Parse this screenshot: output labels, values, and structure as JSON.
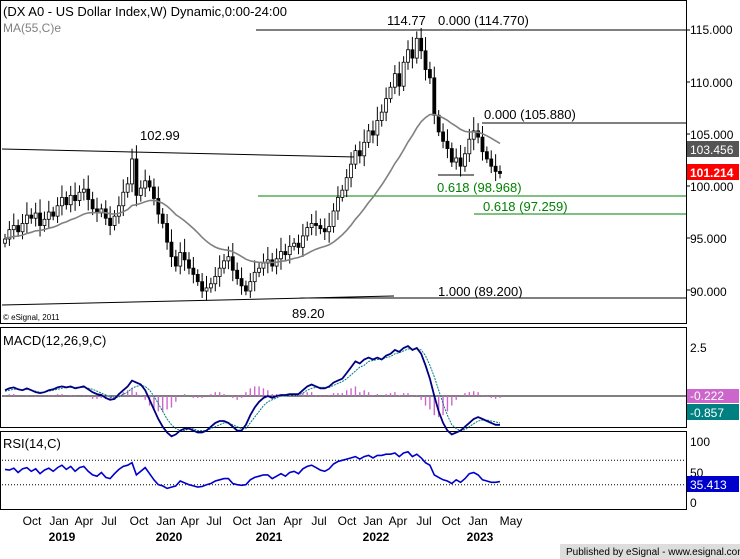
{
  "header": {
    "title": "(DX A0 - US Dollar Index,W) Dynamic,0:00-24:00",
    "ma_label": "MA(55,C)e",
    "copyright": "© eSignal, 2011"
  },
  "footer": {
    "published": "Published by eSignal - www.esignal.com"
  },
  "colors": {
    "ma_line": "#808080",
    "fib_lines": "#008000",
    "macd_line": "#000080",
    "signal_line": "#008080",
    "histogram": "#cc66cc",
    "rsi_line": "#0000cc",
    "price_badge": "#ff0000",
    "ma_badge": "#555555",
    "macd_badge": "#cc66cc",
    "signal_badge": "#008080",
    "rsi_badge": "#0000cc"
  },
  "chart_data": [
    {
      "type": "candlestick",
      "title": "(DX A0 - US Dollar Index,W) Dynamic,0:00-24:00",
      "x_ticks": [
        "Oct",
        "Jan",
        "Apr",
        "Jul",
        "Oct",
        "Jan",
        "Apr",
        "Jul",
        "Oct",
        "Jan",
        "Apr",
        "Jul",
        "Oct",
        "Jan",
        "Apr",
        "Jul",
        "Oct",
        "Jan",
        "May"
      ],
      "year_labels": [
        "2019",
        "2020",
        "2021",
        "2022",
        "2023"
      ],
      "y_ticks": [
        "115.000",
        "110.000",
        "105.000",
        "100.000",
        "95.000",
        "90.000"
      ],
      "ylim": [
        88.2,
        116.8
      ],
      "closes": [
        94.9,
        95.8,
        96.2,
        95.6,
        96.4,
        97.2,
        96.9,
        97.4,
        96.2,
        96.8,
        97.5,
        97.1,
        98.1,
        98.9,
        98.2,
        99.1,
        98.6,
        99.4,
        99.7,
        98.7,
        97.8,
        97.4,
        97.8,
        96.9,
        96.2,
        97.1,
        98.1,
        99.4,
        100.2,
        102.6,
        99.1,
        99.8,
        100.5,
        99.9,
        98.8,
        97.3,
        96.4,
        94.6,
        93.2,
        92.3,
        93.6,
        92.9,
        92.1,
        91.5,
        90.8,
        89.9,
        90.2,
        90.6,
        91.3,
        92.1,
        92.8,
        93.2,
        91.9,
        91.1,
        90.4,
        89.9,
        90.8,
        91.7,
        92.1,
        92.6,
        92.9,
        92.3,
        93.0,
        93.7,
        93.4,
        94.2,
        94.5,
        94.1,
        95.2,
        96.0,
        96.4,
        96.2,
        95.9,
        95.6,
        96.1,
        97.6,
        98.9,
        99.6,
        100.8,
        102.1,
        103.4,
        102.9,
        104.2,
        105.3,
        104.9,
        106.3,
        107.1,
        108.4,
        109.5,
        110.8,
        109.6,
        111.9,
        113.1,
        112.3,
        114.2,
        113.0,
        111.2,
        110.4,
        106.8,
        105.2,
        104.3,
        103.6,
        102.3,
        102.7,
        101.9,
        103.1,
        104.5,
        105.3,
        104.7,
        103.3,
        102.6,
        101.9,
        101.4,
        101.2
      ],
      "ma_label": "MA(55,C)e",
      "ma_value_label": "103.456",
      "last_price_label": "101.214",
      "annotations": [
        {
          "text": "102.99",
          "value": 102.99
        },
        {
          "text": "114.77",
          "value": 114.77
        },
        {
          "text": "0.000 (114.770)",
          "value": 114.77
        },
        {
          "text": "0.000 (105.880)",
          "value": 105.88
        },
        {
          "text": "0.618 (98.968)",
          "value": 98.968
        },
        {
          "text": "0.618 (97.259)",
          "value": 97.259
        },
        {
          "text": "1.000 (89.200)",
          "value": 89.2
        },
        {
          "text": "89.20",
          "value": 89.2
        }
      ]
    },
    {
      "type": "line",
      "title": "MACD(12,26,9,C)",
      "y_ticks": [
        "2.5"
      ],
      "ylim": [
        -4.5,
        3.4
      ],
      "macd": [
        0.3,
        0.4,
        0.45,
        0.35,
        0.3,
        0.4,
        0.3,
        0.2,
        0.15,
        0.2,
        0.3,
        0.35,
        0.45,
        0.5,
        0.45,
        0.5,
        0.4,
        0.45,
        0.5,
        0.35,
        0.2,
        0.1,
        0.05,
        -0.1,
        -0.2,
        -0.15,
        0.1,
        0.3,
        0.5,
        0.8,
        0.7,
        0.6,
        0.3,
        -0.2,
        -0.7,
        -1.2,
        -1.6,
        -1.9,
        -2.1,
        -2.0,
        -1.8,
        -1.7,
        -1.7,
        -1.8,
        -1.9,
        -1.9,
        -1.8,
        -1.6,
        -1.4,
        -1.3,
        -1.3,
        -1.4,
        -1.6,
        -1.8,
        -1.8,
        -1.5,
        -1.0,
        -0.6,
        -0.3,
        -0.1,
        0.0,
        -0.1,
        0.0,
        0.05,
        0.05,
        0.1,
        0.1,
        0.1,
        0.3,
        0.5,
        0.6,
        0.5,
        0.4,
        0.4,
        0.5,
        0.7,
        0.8,
        0.9,
        1.2,
        1.5,
        1.8,
        1.7,
        1.9,
        2.0,
        1.9,
        2.0,
        1.9,
        2.1,
        2.2,
        2.4,
        2.3,
        2.5,
        2.6,
        2.4,
        2.5,
        2.2,
        1.6,
        0.9,
        0.0,
        -0.8,
        -1.4,
        -1.8,
        -2.0,
        -1.9,
        -1.8,
        -1.6,
        -1.4,
        -1.2,
        -1.1,
        -1.2,
        -1.3,
        -1.4,
        -1.5,
        -1.5
      ],
      "signal": [
        0.25,
        0.3,
        0.35,
        0.35,
        0.3,
        0.35,
        0.3,
        0.25,
        0.2,
        0.2,
        0.25,
        0.3,
        0.35,
        0.4,
        0.45,
        0.45,
        0.45,
        0.45,
        0.45,
        0.4,
        0.35,
        0.25,
        0.15,
        0.05,
        -0.05,
        -0.1,
        -0.05,
        0.1,
        0.2,
        0.4,
        0.5,
        0.55,
        0.5,
        0.3,
        0.0,
        -0.4,
        -0.8,
        -1.2,
        -1.5,
        -1.7,
        -1.8,
        -1.8,
        -1.7,
        -1.7,
        -1.8,
        -1.8,
        -1.8,
        -1.7,
        -1.6,
        -1.5,
        -1.4,
        -1.4,
        -1.5,
        -1.6,
        -1.7,
        -1.7,
        -1.4,
        -1.1,
        -0.8,
        -0.5,
        -0.3,
        -0.2,
        -0.1,
        0.0,
        0.0,
        0.05,
        0.05,
        0.05,
        0.15,
        0.3,
        0.4,
        0.45,
        0.45,
        0.45,
        0.45,
        0.55,
        0.65,
        0.75,
        0.9,
        1.1,
        1.3,
        1.5,
        1.6,
        1.8,
        1.85,
        1.9,
        1.9,
        2.0,
        2.05,
        2.2,
        2.25,
        2.35,
        2.45,
        2.45,
        2.45,
        2.4,
        2.1,
        1.6,
        1.0,
        0.3,
        -0.4,
        -1.0,
        -1.5,
        -1.7,
        -1.8,
        -1.75,
        -1.6,
        -1.45,
        -1.3,
        -1.25,
        -1.25,
        -1.3,
        -1.35,
        -1.4
      ],
      "histogram_label": "-0.222",
      "macd_label": "-0.857"
    },
    {
      "type": "line",
      "title": "RSI(14,C)",
      "y_ticks": [
        "100",
        "50",
        "0"
      ],
      "ylim": [
        0,
        100
      ],
      "values": [
        55,
        54,
        57,
        50,
        56,
        58,
        52,
        56,
        48,
        54,
        57,
        52,
        58,
        62,
        55,
        60,
        52,
        58,
        60,
        52,
        46,
        44,
        50,
        42,
        40,
        48,
        55,
        60,
        62,
        66,
        46,
        52,
        58,
        48,
        38,
        30,
        28,
        24,
        26,
        28,
        36,
        33,
        30,
        28,
        26,
        27,
        30,
        32,
        36,
        38,
        40,
        40,
        32,
        30,
        29,
        30,
        38,
        42,
        44,
        46,
        46,
        40,
        44,
        48,
        44,
        50,
        52,
        48,
        56,
        60,
        62,
        58,
        54,
        52,
        56,
        64,
        68,
        70,
        72,
        74,
        76,
        72,
        76,
        78,
        74,
        78,
        78,
        80,
        80,
        82,
        76,
        82,
        84,
        76,
        80,
        74,
        66,
        62,
        46,
        42,
        38,
        36,
        32,
        38,
        34,
        40,
        48,
        50,
        46,
        38,
        36,
        34,
        34,
        35
      ],
      "value_label": "35.413"
    }
  ]
}
